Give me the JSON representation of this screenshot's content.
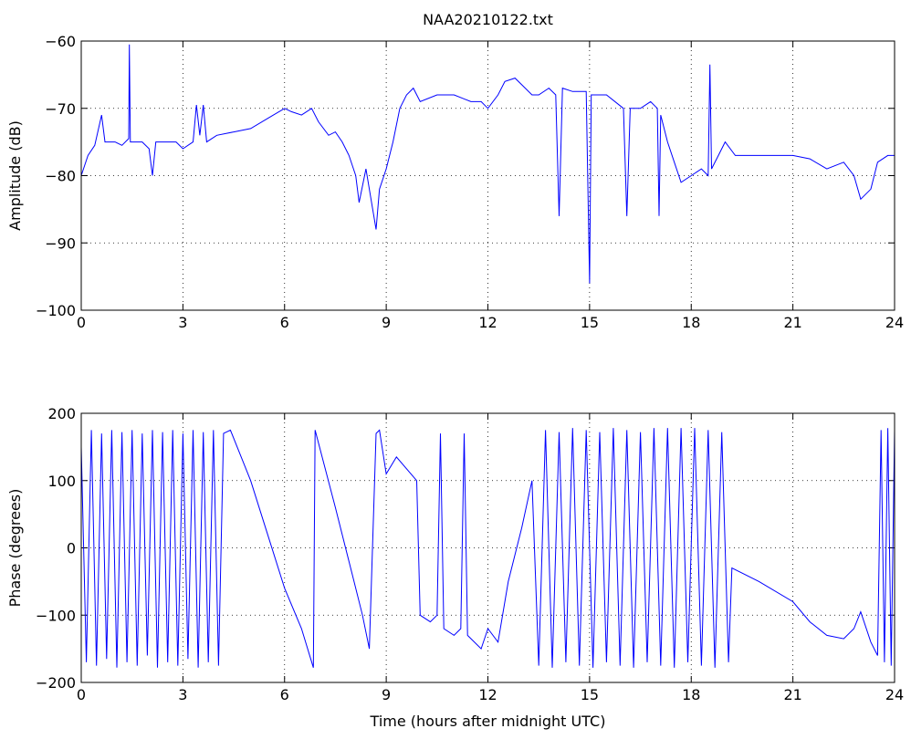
{
  "chart_data": [
    {
      "type": "line",
      "title": "NAA20210122.txt",
      "ylabel": "Amplitude (dB)",
      "color": "#0000ff",
      "grid": true,
      "xlim": [
        0,
        24
      ],
      "xticks": [
        0,
        3,
        6,
        9,
        12,
        15,
        18,
        21,
        24
      ],
      "ylim": [
        -100,
        -60
      ],
      "yticks": [
        {
          "value": -100,
          "label": "−100"
        },
        {
          "value": -90,
          "label": "−90"
        },
        {
          "value": -80,
          "label": "−80"
        },
        {
          "value": -70,
          "label": "−70"
        },
        {
          "value": -60,
          "label": "−60"
        }
      ],
      "x": [
        0,
        0.2,
        0.4,
        0.6,
        0.7,
        1.0,
        1.2,
        1.4,
        1.42,
        1.45,
        1.8,
        2.0,
        2.1,
        2.2,
        2.5,
        2.8,
        3.0,
        3.3,
        3.4,
        3.5,
        3.6,
        3.7,
        4.0,
        4.5,
        5.0,
        5.5,
        6.0,
        6.2,
        6.5,
        6.8,
        7.0,
        7.3,
        7.5,
        7.7,
        7.9,
        8.1,
        8.2,
        8.4,
        8.6,
        8.7,
        8.8,
        9.0,
        9.2,
        9.4,
        9.6,
        9.8,
        10.0,
        10.5,
        11.0,
        11.5,
        11.8,
        12.0,
        12.3,
        12.5,
        12.8,
        13.0,
        13.3,
        13.5,
        13.8,
        14.0,
        14.1,
        14.2,
        14.5,
        14.9,
        15.0,
        15.05,
        15.5,
        16.0,
        16.1,
        16.2,
        16.5,
        16.8,
        17.0,
        17.05,
        17.1,
        17.3,
        17.5,
        17.7,
        18.0,
        18.3,
        18.5,
        18.55,
        18.6,
        18.8,
        19.0,
        19.3,
        20.0,
        20.5,
        21.0,
        21.5,
        22.0,
        22.5,
        22.8,
        23.0,
        23.3,
        23.5,
        23.8,
        24.0
      ],
      "values": [
        -80,
        -77,
        -75.5,
        -71,
        -75,
        -75,
        -75.5,
        -74.5,
        -60.5,
        -75,
        -75,
        -76,
        -80,
        -75,
        -75,
        -75,
        -76,
        -75,
        -69.5,
        -74,
        -69.5,
        -75,
        -74,
        -73.5,
        -73,
        -71.5,
        -70,
        -70.5,
        -71,
        -70,
        -72,
        -74,
        -73.5,
        -75,
        -77,
        -80,
        -84,
        -79,
        -85,
        -88,
        -82,
        -79,
        -75,
        -70,
        -68,
        -67,
        -69,
        -68,
        -68,
        -69,
        -69,
        -70,
        -68,
        -66,
        -65.5,
        -66.5,
        -68,
        -68,
        -67,
        -68,
        -86,
        -67,
        -67.5,
        -67.5,
        -96,
        -68,
        -68,
        -70,
        -86,
        -70,
        -70,
        -69,
        -70,
        -86,
        -71,
        -75,
        -78,
        -81,
        -80,
        -79,
        -80,
        -63.5,
        -79,
        -77,
        -75,
        -77,
        -77,
        -77,
        -77,
        -77.5,
        -79,
        -78,
        -80,
        -83.5,
        -82,
        -78,
        -77,
        -77
      ]
    },
    {
      "type": "line",
      "xlabel": "Time (hours after midnight UTC)",
      "ylabel": "Phase (degrees)",
      "color": "#0000ff",
      "grid": true,
      "xlim": [
        0,
        24
      ],
      "xticks": [
        0,
        3,
        6,
        9,
        12,
        15,
        18,
        21,
        24
      ],
      "ylim": [
        -200,
        200
      ],
      "yticks": [
        {
          "value": -200,
          "label": "−200"
        },
        {
          "value": -100,
          "label": "−100"
        },
        0,
        100,
        200
      ],
      "x": [
        0,
        0.15,
        0.3,
        0.45,
        0.6,
        0.75,
        0.9,
        1.05,
        1.2,
        1.35,
        1.5,
        1.65,
        1.8,
        1.95,
        2.1,
        2.25,
        2.4,
        2.55,
        2.7,
        2.85,
        3.0,
        3.15,
        3.3,
        3.45,
        3.6,
        3.75,
        3.9,
        4.05,
        4.2,
        4.4,
        5.0,
        5.5,
        6.0,
        6.5,
        6.85,
        6.9,
        7.5,
        8.0,
        8.3,
        8.5,
        8.7,
        8.8,
        9.0,
        9.3,
        9.9,
        10.0,
        10.3,
        10.5,
        10.6,
        10.7,
        11.0,
        11.2,
        11.3,
        11.4,
        11.8,
        12.0,
        12.3,
        12.6,
        13.0,
        13.3,
        13.5,
        13.7,
        13.9,
        14.1,
        14.3,
        14.5,
        14.7,
        14.9,
        15.1,
        15.3,
        15.5,
        15.7,
        15.9,
        16.1,
        16.3,
        16.5,
        16.7,
        16.9,
        17.1,
        17.3,
        17.5,
        17.7,
        17.9,
        18.1,
        18.3,
        18.5,
        18.7,
        18.9,
        19.1,
        19.2,
        20.0,
        21.0,
        21.5,
        22.0,
        22.5,
        22.8,
        23.0,
        23.3,
        23.5,
        23.6,
        23.7,
        23.8,
        23.9,
        24.0
      ],
      "values": [
        150,
        -170,
        175,
        -175,
        170,
        -165,
        175,
        -178,
        172,
        -170,
        175,
        -175,
        170,
        -160,
        175,
        -178,
        172,
        -170,
        175,
        -175,
        170,
        -165,
        175,
        -178,
        172,
        -170,
        175,
        -175,
        170,
        175,
        100,
        20,
        -60,
        -120,
        -178,
        175,
        60,
        -40,
        -100,
        -150,
        170,
        175,
        110,
        135,
        100,
        -100,
        -110,
        -100,
        170,
        -120,
        -130,
        -120,
        170,
        -130,
        -150,
        -120,
        -140,
        -50,
        30,
        100,
        -175,
        175,
        -178,
        172,
        -170,
        178,
        -175,
        175,
        -178,
        172,
        -170,
        178,
        -175,
        175,
        -178,
        172,
        -170,
        178,
        -175,
        178,
        -178,
        178,
        -170,
        178,
        -175,
        175,
        -178,
        172,
        -170,
        -30,
        -50,
        -80,
        -110,
        -130,
        -135,
        -120,
        -95,
        -140,
        -160,
        175,
        -170,
        178,
        -175,
        175
      ]
    }
  ]
}
